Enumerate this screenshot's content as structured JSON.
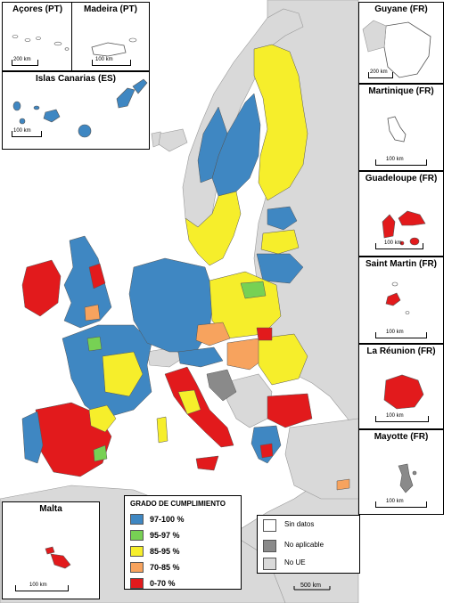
{
  "insets": {
    "azores": {
      "title": "Açores (PT)",
      "scale": "200 km"
    },
    "madeira": {
      "title": "Madeira (PT)",
      "scale": "100 km"
    },
    "canarias": {
      "title": "Islas Canarias (ES)",
      "scale": "100 km"
    },
    "guyane": {
      "title": "Guyane (FR)",
      "scale": "200 km"
    },
    "martinique": {
      "title": "Martinique (FR)",
      "scale": "100 km"
    },
    "guadeloupe": {
      "title": "Guadeloupe (FR)",
      "scale": "100 km"
    },
    "saint_martin": {
      "title": "Saint Martin (FR)",
      "scale": "100 km"
    },
    "reunion": {
      "title": "La Réunion (FR)",
      "scale": "100 km"
    },
    "mayotte": {
      "title": "Mayotte (FR)",
      "scale": "100 km"
    },
    "malta": {
      "title": "Malta",
      "scale": "100 km"
    }
  },
  "main_scale": "500 km",
  "legend": {
    "title": "GRADO DE CUMPLIMIENTO",
    "classes": [
      {
        "label": "97-100 %",
        "color": "#3f87c2"
      },
      {
        "label": "95-97 %",
        "color": "#77d154"
      },
      {
        "label": "85-95 %",
        "color": "#f6ee2b"
      },
      {
        "label": "70-85 %",
        "color": "#f7a35e"
      },
      {
        "label": "0-70 %",
        "color": "#e21a1c"
      }
    ]
  },
  "legend2": {
    "items": [
      {
        "label": "Sin datos",
        "color": "#ffffff"
      },
      {
        "label": "No aplicable",
        "color": "#8a8a8a"
      },
      {
        "label": "No UE",
        "color": "#d9d9d9"
      }
    ]
  },
  "colors": {
    "sea": "#ffffff",
    "non_eu": "#d9d9d9",
    "border": "#555555"
  }
}
